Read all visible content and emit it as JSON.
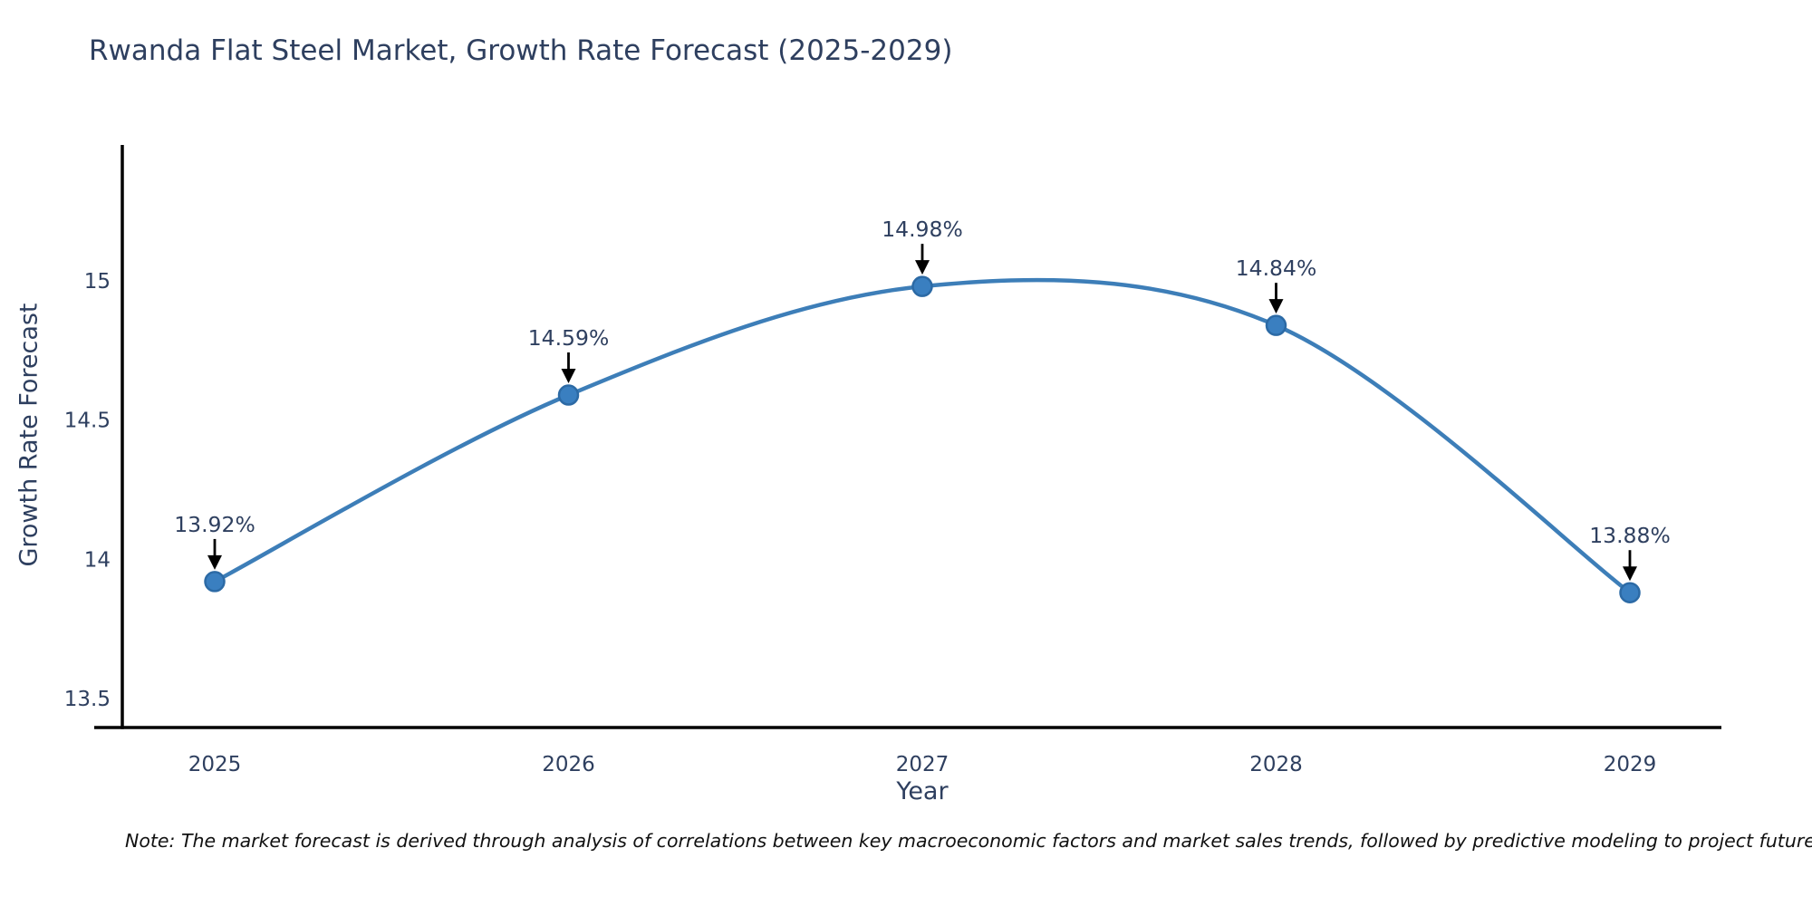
{
  "chart_data": {
    "type": "line",
    "title": "Rwanda Flat Steel Market, Growth Rate Forecast (2025-2029)",
    "xlabel": "Year",
    "ylabel": "Growth Rate Forecast",
    "x": [
      2025,
      2026,
      2027,
      2028,
      2029
    ],
    "values": [
      13.92,
      14.59,
      14.98,
      14.84,
      13.88
    ],
    "point_labels": [
      "13.92%",
      "14.59%",
      "14.84%",
      "13.88%"
    ],
    "series": [
      {
        "name": "Growth Rate Forecast",
        "x": [
          2025,
          2026,
          2027,
          2028,
          2029
        ],
        "values": [
          13.92,
          14.59,
          14.98,
          14.84,
          13.88
        ],
        "labels": [
          "13.92%",
          "14.59%",
          "14.98%",
          "14.84%",
          "13.88%"
        ]
      }
    ],
    "xticks": [
      "2025",
      "2026",
      "2027",
      "2028",
      "2029"
    ],
    "yticks": [
      15,
      14.5,
      14,
      13.5
    ],
    "ylim": [
      13.38,
      15.49
    ],
    "xlim": [
      2024.73,
      2029.27
    ],
    "line_shape": "spline",
    "grid": false,
    "legend_position": "none",
    "colors": {
      "line": "#3d7eb8",
      "marker_fill": "#3a7fc0",
      "marker_edge": "#2c6aa5",
      "axis_text": "#2e3f5f",
      "annotation_text": "#2e3f5f",
      "spine": "#000000",
      "arrow": "#000000"
    },
    "note": "Note: The market forecast is derived through analysis of correlations between key macroeconomic factors and market sales trends, followed by predictive modeling to project future sal"
  }
}
